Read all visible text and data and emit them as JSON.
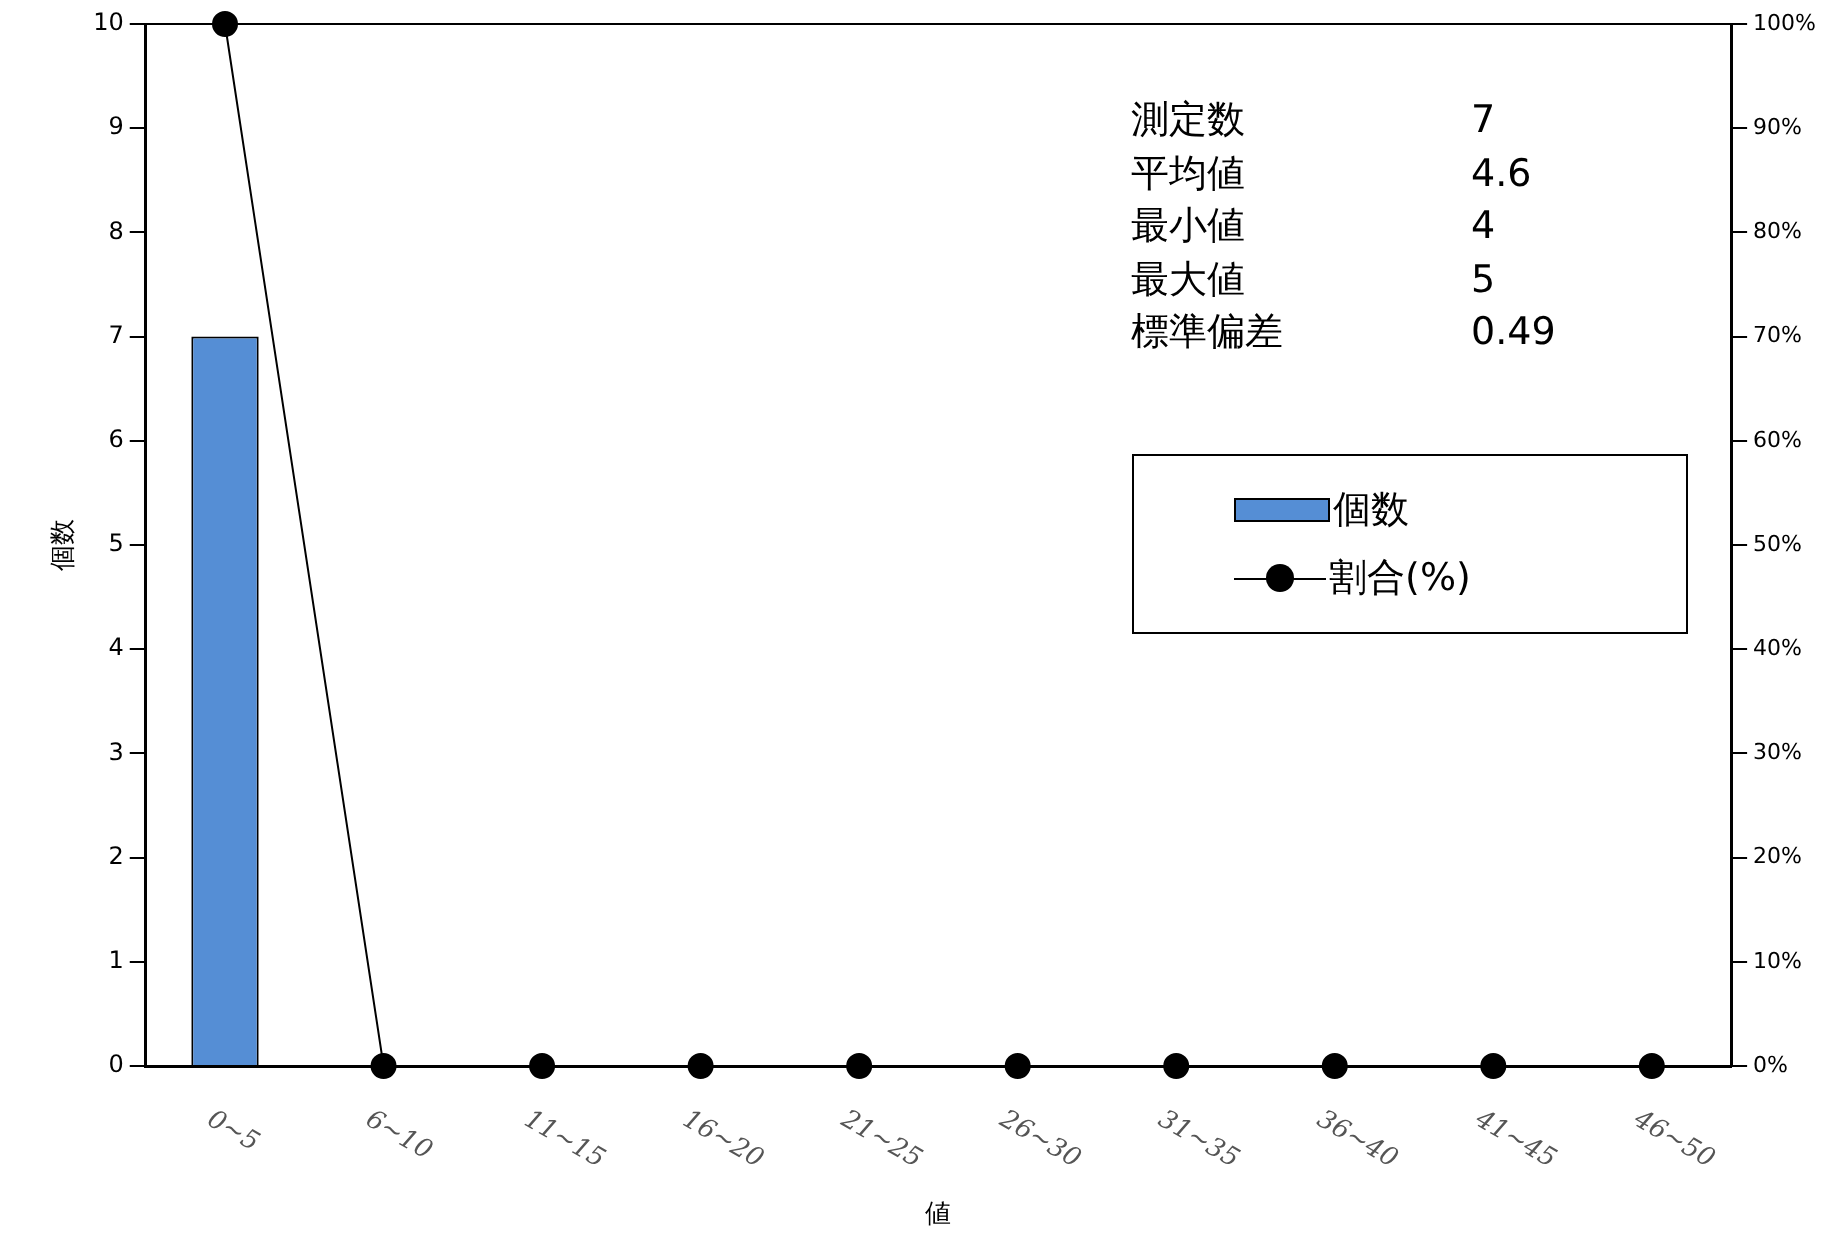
{
  "chart_data": {
    "type": "bar",
    "xlabel": "値",
    "ylabel": "個数",
    "categories": [
      "0~5",
      "6~10",
      "11~15",
      "16~20",
      "21~25",
      "26~30",
      "31~35",
      "36~40",
      "41~45",
      "46~50"
    ],
    "series": [
      {
        "name": "個数",
        "color": "#558ed5",
        "values": [
          7,
          0,
          0,
          0,
          0,
          0,
          0,
          0,
          0,
          0
        ]
      },
      {
        "name": "割合(%)",
        "type": "line",
        "axis": "y2",
        "color": "#000000",
        "values": [
          100,
          0,
          0,
          0,
          0,
          0,
          0,
          0,
          0,
          0
        ]
      }
    ],
    "ylim": [
      0,
      10
    ],
    "yticks": [
      0,
      1,
      2,
      3,
      4,
      5,
      6,
      7,
      8,
      9,
      10
    ],
    "y2lim": [
      0,
      100
    ],
    "y2ticks": [
      {
        "value": 0,
        "label": "0%"
      },
      {
        "value": 10,
        "label": "10%"
      },
      {
        "value": 20,
        "label": "20%"
      },
      {
        "value": 30,
        "label": "30%"
      },
      {
        "value": 40,
        "label": "40%"
      },
      {
        "value": 50,
        "label": "50%"
      },
      {
        "value": 60,
        "label": "60%"
      },
      {
        "value": 70,
        "label": "70%"
      },
      {
        "value": 80,
        "label": "80%"
      },
      {
        "value": 90,
        "label": "90%"
      },
      {
        "value": 100,
        "label": "100%"
      }
    ],
    "annotations": [
      "測定数",
      "7",
      "平均値",
      "4.6",
      "最小値",
      "4",
      "最大値",
      "5",
      "標準偏差",
      "0.49"
    ],
    "grid": false,
    "legend": "top right",
    "marker": "circle",
    "line_style": "solid"
  }
}
